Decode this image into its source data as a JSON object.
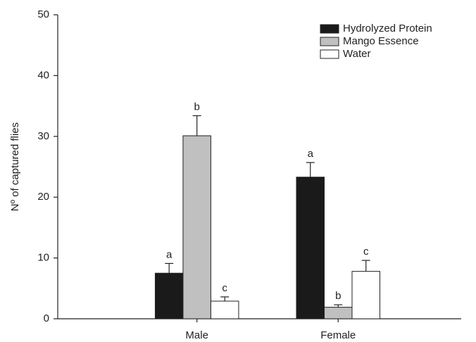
{
  "chart_data": {
    "type": "bar",
    "y_label": "Nº of captured flies",
    "categories": [
      "Male",
      "Female"
    ],
    "series": [
      {
        "name": "Hydrolyzed Protein",
        "color": "#1a1a1a",
        "values": [
          7.5,
          23.3
        ],
        "errors": [
          1.6,
          2.4
        ],
        "letters": [
          "a",
          "a"
        ]
      },
      {
        "name": "Mango Essence",
        "color": "#c0c0c0",
        "values": [
          30.1,
          1.9
        ],
        "errors": [
          3.3,
          0.4
        ],
        "letters": [
          "b",
          "b"
        ]
      },
      {
        "name": "Water",
        "color": "#ffffff",
        "values": [
          2.9,
          7.8
        ],
        "errors": [
          0.7,
          1.8
        ],
        "letters": [
          "c",
          "c"
        ]
      }
    ],
    "ylim": [
      0,
      50
    ],
    "yticks": [
      0,
      10,
      20,
      30,
      40,
      50
    ],
    "legend": "upper right"
  }
}
